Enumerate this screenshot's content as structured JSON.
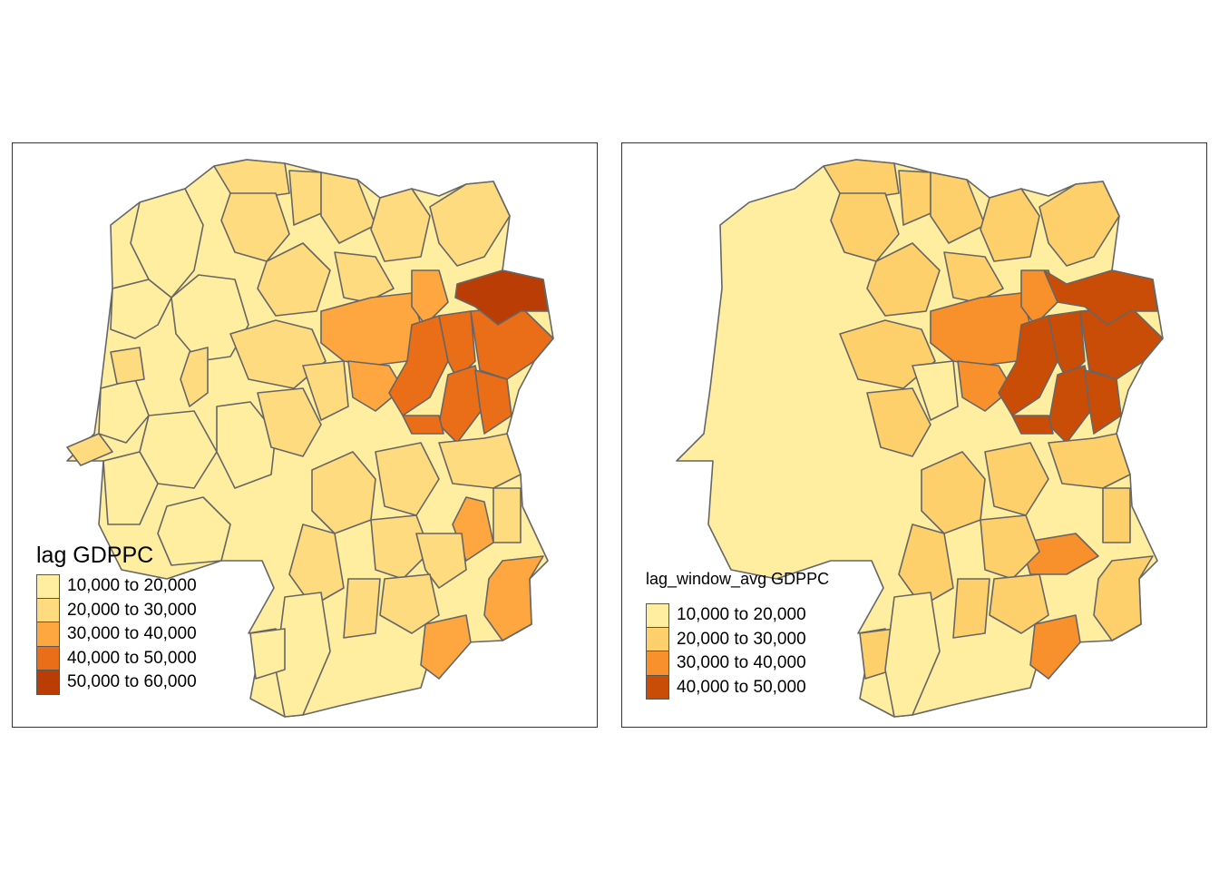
{
  "colors": {
    "c1": "#ffeda0",
    "c2": "#fedb7e",
    "c3": "#fea740",
    "c4": "#ea6d18",
    "c5": "#b93d04",
    "r1": "#ffeda0",
    "r2": "#fed06b",
    "r3": "#f8902c",
    "r4": "#c94d06",
    "border": "#666666"
  },
  "maps": [
    {
      "legend_title": "lag GDPPC",
      "legend": [
        {
          "label": "10,000 to 20,000",
          "color": "#ffeda0"
        },
        {
          "label": "20,000 to 30,000",
          "color": "#fedb7e"
        },
        {
          "label": "30,000 to 40,000",
          "color": "#fea740"
        },
        {
          "label": "40,000 to 50,000",
          "color": "#ea6d18"
        },
        {
          "label": "50,000 to 60,000",
          "color": "#b93d04"
        }
      ]
    },
    {
      "legend_title": "lag_window_avg GDPPC",
      "legend": [
        {
          "label": "10,000 to 20,000",
          "color": "#ffeda0"
        },
        {
          "label": "20,000 to 30,000",
          "color": "#fed06b"
        },
        {
          "label": "30,000 to 40,000",
          "color": "#f8902c"
        },
        {
          "label": "40,000 to 50,000",
          "color": "#c94d06"
        }
      ]
    }
  ]
}
